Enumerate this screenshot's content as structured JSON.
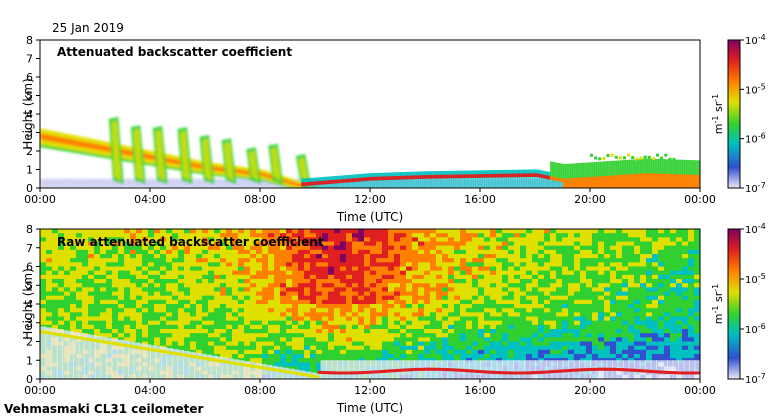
{
  "figure": {
    "date_label": "25 Jan 2019",
    "instrument_label": "Vehmasmaki CL31 ceilometer"
  },
  "chart_data": [
    {
      "type": "heatmap",
      "title": "Attenuated backscatter coefficient",
      "xlabel": "Time (UTC)",
      "ylabel": "Height (km)",
      "x_ticks": [
        "00:00",
        "04:00",
        "08:00",
        "12:00",
        "16:00",
        "20:00",
        "00:00"
      ],
      "x_range_hours": [
        0,
        24
      ],
      "ylim": [
        0,
        8
      ],
      "y_ticks": [
        0,
        1,
        2,
        3,
        4,
        5,
        6,
        7,
        8
      ],
      "colorbar": {
        "scale": "log",
        "range": [
          1e-07,
          0.0001
        ],
        "tick_labels": [
          "10-7",
          "10-6",
          "10-5",
          "10-4"
        ],
        "tick_bases": [
          "10",
          "10",
          "10",
          "10"
        ],
        "tick_exponents": [
          "-7",
          "-6",
          "-5",
          "-4"
        ],
        "unit_label": "m-1 sr-1",
        "colors": [
          "#e8e8f8",
          "#3050d0",
          "#00c0c0",
          "#30d030",
          "#e0e000",
          "#ff8000",
          "#e02020",
          "#800060"
        ]
      },
      "features": {
        "aerosol_top_km": [
          [
            0,
            3.2
          ],
          [
            2,
            2.6
          ],
          [
            4,
            2.0
          ],
          [
            6,
            1.4
          ],
          [
            8,
            1.0
          ],
          [
            10,
            0.1
          ],
          [
            12,
            0.8
          ],
          [
            16,
            0.7
          ],
          [
            18,
            0.5
          ],
          [
            20,
            0.9
          ],
          [
            24,
            1.0
          ]
        ],
        "cloud_streaks_hours": [
          2.5,
          3.3,
          4.1,
          5.0,
          5.8,
          6.6,
          7.5,
          8.3,
          9.3
        ],
        "low_cloud_layer_km": [
          [
            9.5,
            0.1
          ],
          [
            12,
            0.4
          ],
          [
            14,
            0.5
          ],
          [
            16,
            0.55
          ],
          [
            18,
            0.6
          ],
          [
            19,
            0.3
          ],
          [
            22,
            0.6
          ],
          [
            24,
            0.5
          ]
        ],
        "high_layer": {
          "start_hour": 20.0,
          "end_hour": 23.0,
          "height_km": 1.5
        }
      }
    },
    {
      "type": "heatmap",
      "title": "Raw attenuated backscatter coefficient",
      "xlabel": "Time (UTC)",
      "ylabel": "Height (km)",
      "x_ticks": [
        "00:00",
        "04:00",
        "08:00",
        "12:00",
        "16:00",
        "20:00",
        "00:00"
      ],
      "x_range_hours": [
        0,
        24
      ],
      "ylim": [
        0,
        8
      ],
      "y_ticks": [
        0,
        1,
        2,
        3,
        4,
        5,
        6,
        7,
        8
      ],
      "colorbar": {
        "scale": "log",
        "range": [
          1e-07,
          0.0001
        ],
        "tick_labels": [
          "10-7",
          "10-6",
          "10-5",
          "10-4"
        ],
        "tick_bases": [
          "10",
          "10",
          "10",
          "10"
        ],
        "tick_exponents": [
          "-7",
          "-6",
          "-5",
          "-4"
        ],
        "unit_label": "m-1 sr-1",
        "colors": [
          "#e8e8f8",
          "#3050d0",
          "#00c0c0",
          "#30d030",
          "#e0e000",
          "#ff8000",
          "#e02020",
          "#800060"
        ]
      },
      "features": {
        "noise_background": true,
        "noise_peak_hour": 11.0
      }
    }
  ]
}
